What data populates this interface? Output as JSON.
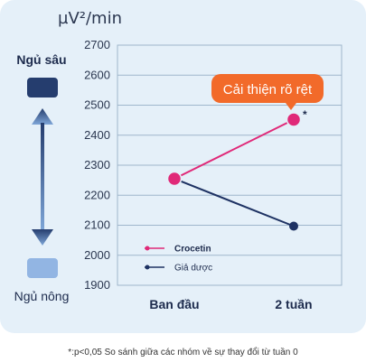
{
  "unit_label": "µV²/min",
  "deep_sleep_label": "Ngủ sâu",
  "light_sleep_label": "Ngủ nông",
  "callout": "Cải thiện rõ rệt",
  "significance_marker": "*",
  "footnote": "*:p<0,05 So sánh giữa các nhóm về sự thay đổi từ tuần 0",
  "colors": {
    "crocetin": "#e02978",
    "placebo": "#1e3263",
    "callout": "#f26a2a",
    "deep": "#253d6e",
    "light": "#92b5e3",
    "arrow_top": "#253d6e",
    "arrow_bottom": "#7ea6d8"
  },
  "chart_data": {
    "type": "line",
    "categories": [
      "Ban đầu",
      "2 tuần"
    ],
    "ylim": [
      1900,
      2700
    ],
    "yticks": [
      1900,
      2000,
      2100,
      2200,
      2300,
      2400,
      2500,
      2600,
      2700
    ],
    "grid": true,
    "legend_position": "bottom-left",
    "series": [
      {
        "name": "Crocetin",
        "values": [
          2255,
          2452
        ],
        "color": "#e02978"
      },
      {
        "name": "Giả dược",
        "values": [
          2255,
          2097
        ],
        "color": "#1e3263"
      }
    ]
  }
}
